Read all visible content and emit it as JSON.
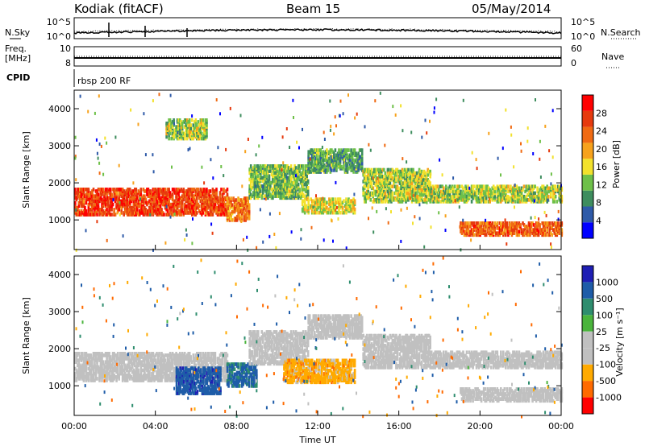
{
  "header": {
    "radar": "Kodiak (fitACF)",
    "beam": "Beam 15",
    "date": "05/May/2014"
  },
  "strip_panels": {
    "sky_label": "N.Sky",
    "search_label": "N.Search",
    "sky_ticks": [
      "10^5",
      "10^0"
    ],
    "search_ticks": [
      "10^5",
      "10^0"
    ],
    "freq_label_line1": "Freq.",
    "freq_label_line2": "[MHz]",
    "freq_ticks": [
      "10",
      "8"
    ],
    "nave_label": "Nave",
    "nave_ticks": [
      "60",
      "0"
    ],
    "cpid_label": "CPID",
    "cpid_value": "rbsp 200 RF"
  },
  "colors": {
    "power_scale": [
      "#0000ff",
      "#2e5aa8",
      "#3e8d5e",
      "#6ec049",
      "#f2e12c",
      "#f7a21c",
      "#f06a12",
      "#e63a0e",
      "#ff0000"
    ],
    "velocity_scale": [
      "#ff0000",
      "#ff6a00",
      "#ffaa00",
      "#c0c0c0",
      "#c0c0c0",
      "#4ab43c",
      "#2e8d6e",
      "#1e5ca8",
      "#1e1eb4"
    ]
  },
  "chart_data": [
    {
      "type": "heatmap",
      "name": "power",
      "ylabel": "Slant Range [km]",
      "yticks": [
        "1000",
        "2000",
        "3000",
        "4000"
      ],
      "y_values": [
        1000,
        2000,
        3000,
        4000
      ],
      "ylim": [
        200,
        4500
      ],
      "xlim": [
        0,
        24
      ],
      "colorbar": {
        "label": "Power [dB]",
        "ticks": [
          "4",
          "8",
          "12",
          "16",
          "20",
          "24",
          "28"
        ],
        "tick_values": [
          4,
          8,
          12,
          16,
          20,
          24,
          28
        ],
        "range": [
          0,
          32
        ]
      },
      "bands": [
        {
          "t0": 0,
          "t1": 7.5,
          "r0": 1150,
          "r1": 1850,
          "value": 26
        },
        {
          "t0": 7.5,
          "t1": 8.6,
          "r0": 1000,
          "r1": 1600,
          "value": 22
        },
        {
          "t0": 8.6,
          "t1": 11.5,
          "r0": 1600,
          "r1": 2500,
          "value": 12
        },
        {
          "t0": 11.5,
          "t1": 14.2,
          "r0": 2300,
          "r1": 2900,
          "value": 10
        },
        {
          "t0": 14.2,
          "t1": 17.5,
          "r0": 1500,
          "r1": 2400,
          "value": 14
        },
        {
          "t0": 17.5,
          "t1": 24,
          "r0": 1500,
          "r1": 1950,
          "value": 14
        },
        {
          "t0": 19,
          "t1": 24,
          "r0": 600,
          "r1": 950,
          "value": 24
        },
        {
          "t0": 11.2,
          "t1": 13.8,
          "r0": 1200,
          "r1": 1600,
          "value": 16
        },
        {
          "t0": 4.5,
          "t1": 6.5,
          "r0": 3200,
          "r1": 3700,
          "value": 14
        }
      ]
    },
    {
      "type": "heatmap",
      "name": "velocity",
      "ylabel": "Slant Range [km]",
      "xlabel": "Time UT",
      "yticks": [
        "1000",
        "2000",
        "3000",
        "4000"
      ],
      "y_values": [
        1000,
        2000,
        3000,
        4000
      ],
      "ylim": [
        200,
        4500
      ],
      "xlim": [
        0,
        24
      ],
      "xticks": [
        "00:00",
        "04:00",
        "08:00",
        "12:00",
        "16:00",
        "20:00",
        "00:00"
      ],
      "x_values": [
        0,
        4,
        8,
        12,
        16,
        20,
        24
      ],
      "colorbar": {
        "label": "Velocity [m s⁻¹]",
        "ticks": [
          "1000",
          "500",
          "100",
          "25",
          "-25",
          "-100",
          "-500",
          "-1000"
        ]
      },
      "bands": [
        {
          "t0": 0,
          "t1": 7.5,
          "r0": 1150,
          "r1": 1900,
          "value": 0
        },
        {
          "t0": 5,
          "t1": 7.2,
          "r0": 800,
          "r1": 1500,
          "value": 800
        },
        {
          "t0": 7.5,
          "t1": 9,
          "r0": 1000,
          "r1": 1600,
          "value": 600
        },
        {
          "t0": 8.6,
          "t1": 11.5,
          "r0": 1600,
          "r1": 2500,
          "value": 0
        },
        {
          "t0": 11.5,
          "t1": 14.2,
          "r0": 2300,
          "r1": 2900,
          "value": 0
        },
        {
          "t0": 10.3,
          "t1": 13.8,
          "r0": 1100,
          "r1": 1700,
          "value": -300
        },
        {
          "t0": 14.2,
          "t1": 17.5,
          "r0": 1500,
          "r1": 2400,
          "value": 0
        },
        {
          "t0": 17.5,
          "t1": 24,
          "r0": 1500,
          "r1": 1950,
          "value": 0
        },
        {
          "t0": 19,
          "t1": 24,
          "r0": 600,
          "r1": 950,
          "value": 0
        }
      ]
    }
  ]
}
